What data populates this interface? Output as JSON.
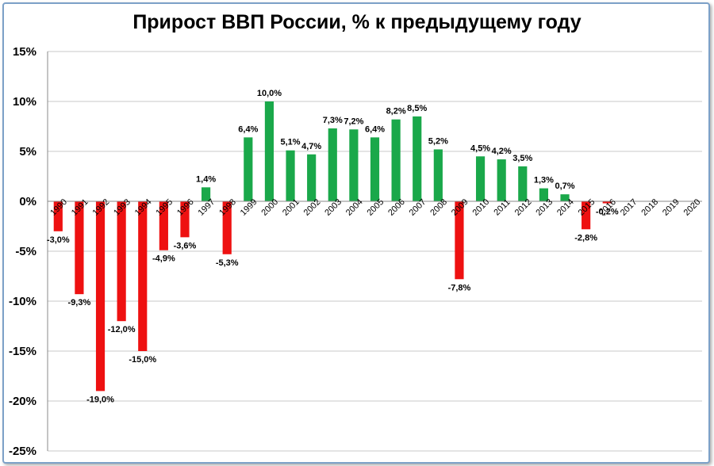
{
  "chart_data": {
    "type": "bar",
    "title": "Прирост ВВП России, % к предыдущему году",
    "xlabel": "",
    "ylabel": "",
    "ylim": [
      -25,
      15
    ],
    "yticks": [
      15,
      10,
      5,
      0,
      -5,
      -10,
      -15,
      -20,
      -25
    ],
    "ytick_labels": [
      "15%",
      "10%",
      "5%",
      "0%",
      "-5%",
      "-10%",
      "-15%",
      "-20%",
      "-25%"
    ],
    "grid": true,
    "legend": "none",
    "categories": [
      "1990",
      "1991",
      "1992",
      "1993",
      "1994",
      "1995",
      "1996",
      "1997",
      "1998",
      "1999",
      "2000",
      "2001",
      "2002",
      "2003",
      "2004",
      "2005",
      "2006",
      "2007",
      "2008",
      "2009",
      "2010",
      "2011",
      "2012",
      "2013",
      "2014",
      "2015",
      "2016",
      "2017",
      "2018",
      "2019",
      "2020"
    ],
    "values": [
      -3.0,
      -9.3,
      -19.0,
      -12.0,
      -15.0,
      -4.9,
      -3.6,
      1.4,
      -5.3,
      6.4,
      10.0,
      5.1,
      4.7,
      7.3,
      7.2,
      6.4,
      8.2,
      8.5,
      5.2,
      -7.8,
      4.5,
      4.2,
      3.5,
      1.3,
      0.7,
      -2.8,
      -0.2,
      null,
      null,
      null,
      null
    ],
    "data_labels": [
      "-3,0%",
      "-9,3%",
      "-19,0%",
      "-12,0%",
      "-15,0%",
      "-4,9%",
      "-3,6%",
      "1,4%",
      "-5,3%",
      "6,4%",
      "10,0%",
      "5,1%",
      "4,7%",
      "7,3%",
      "7,2%",
      "6,4%",
      "8,2%",
      "8,5%",
      "5,2%",
      "-7,8%",
      "4,5%",
      "4,2%",
      "3,5%",
      "1,3%",
      "0,7%",
      "-2,8%",
      "-0,2%",
      "",
      "",
      "",
      ""
    ],
    "colors": {
      "positive": "#1aa84a",
      "negative": "#ee1111"
    }
  }
}
